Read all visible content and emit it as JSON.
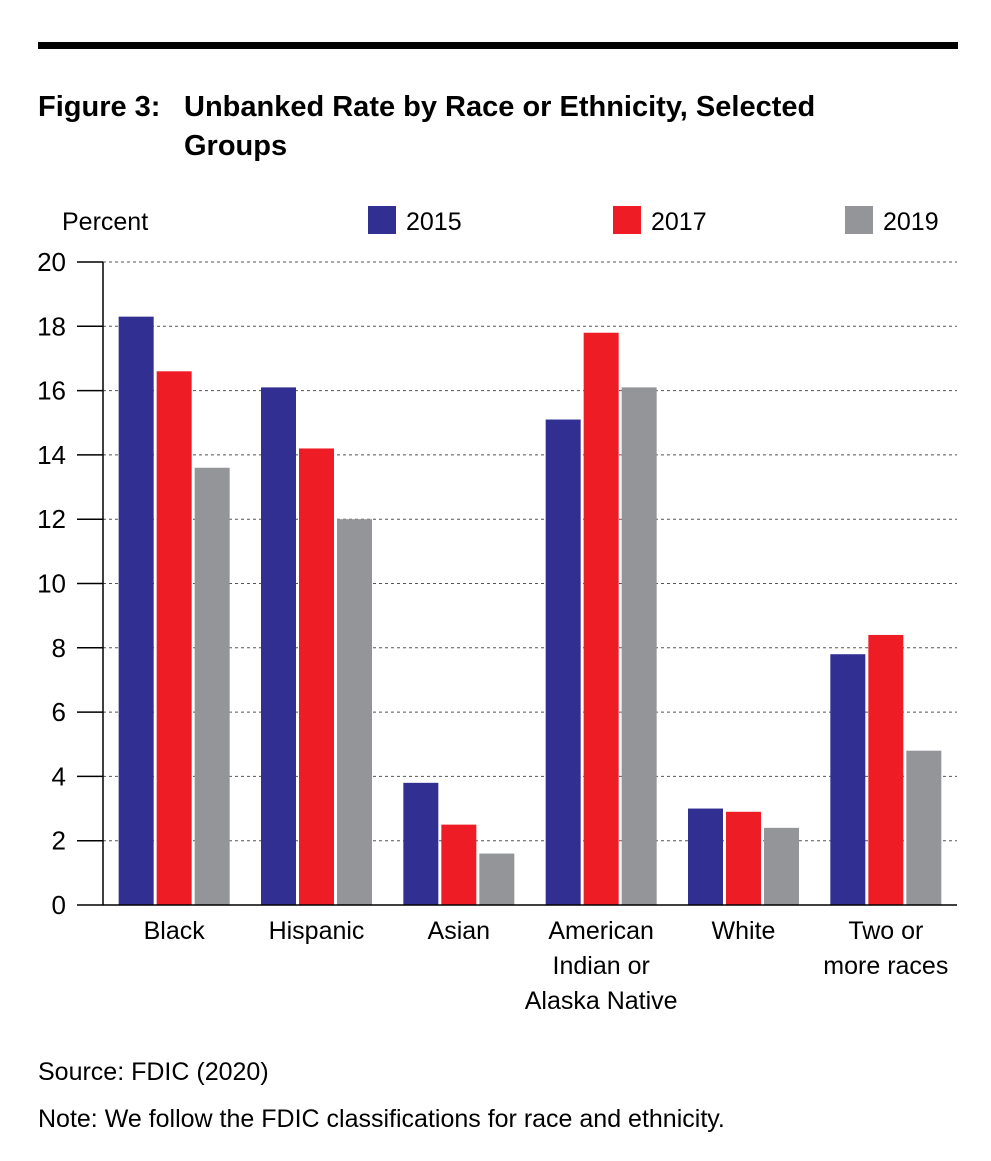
{
  "figure": {
    "title_number": "Figure 3:",
    "title_line1": "Unbanked Rate by Race or Ethnicity, Selected",
    "title_line2": "Groups"
  },
  "chart_data": {
    "type": "bar",
    "ylabel": "Percent",
    "xlabel": "",
    "ylim": [
      0,
      20
    ],
    "yticks": [
      0,
      2,
      4,
      6,
      8,
      10,
      12,
      14,
      16,
      18,
      20
    ],
    "grid": true,
    "grid_style": "dashed",
    "legend_position": "top",
    "categories": [
      [
        "Black"
      ],
      [
        "Hispanic"
      ],
      [
        "Asian"
      ],
      [
        "American",
        "Indian or",
        "Alaska Native"
      ],
      [
        "White"
      ],
      [
        "Two or",
        "more races"
      ]
    ],
    "series": [
      {
        "name": "2015",
        "color": "#312f92",
        "values": [
          18.3,
          16.1,
          3.8,
          15.1,
          3.0,
          7.8
        ]
      },
      {
        "name": "2017",
        "color": "#ee1c25",
        "values": [
          16.6,
          14.2,
          2.5,
          17.8,
          2.9,
          8.4
        ]
      },
      {
        "name": "2019",
        "color": "#939598",
        "values": [
          13.6,
          12.0,
          1.6,
          16.1,
          2.4,
          4.8
        ]
      }
    ]
  },
  "footer": {
    "source": "Source: FDIC (2020)",
    "note": "Note: We follow the FDIC classifications for race and ethnicity."
  }
}
